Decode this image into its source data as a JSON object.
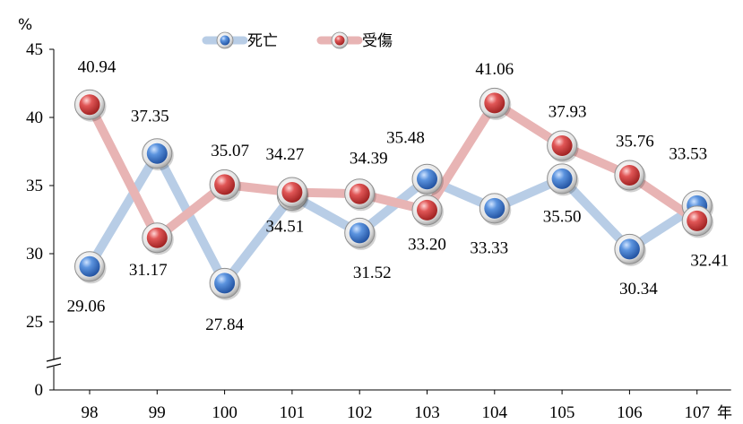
{
  "chart_data": {
    "type": "line",
    "ylabel": "%",
    "xunit": "年",
    "categories": [
      "98",
      "99",
      "100",
      "101",
      "102",
      "103",
      "104",
      "105",
      "106",
      "107"
    ],
    "series": [
      {
        "name": "死亡",
        "color": "#3e78c8",
        "line_color": "#b8cde6",
        "values": [
          29.06,
          37.35,
          27.84,
          34.27,
          31.52,
          35.48,
          33.33,
          35.5,
          30.34,
          33.53
        ],
        "labels": [
          "29.06",
          "37.35",
          "27.84",
          "34.27",
          "31.52",
          "35.48",
          "33.33",
          "35.50",
          "30.34",
          "33.53"
        ]
      },
      {
        "name": "受傷",
        "color": "#d64040",
        "line_color": "#e8b4b4",
        "values": [
          40.94,
          31.17,
          35.07,
          34.51,
          34.39,
          33.2,
          41.06,
          37.93,
          35.76,
          32.41
        ],
        "labels": [
          "40.94",
          "31.17",
          "35.07",
          "34.51",
          "34.39",
          "33.20",
          "41.06",
          "37.93",
          "35.76",
          "32.41"
        ]
      }
    ],
    "yticks": [
      0,
      25,
      30,
      35,
      40,
      45
    ],
    "ylim": [
      25,
      45
    ],
    "axis_break": true,
    "grid": false,
    "legend_position": "top-center"
  }
}
